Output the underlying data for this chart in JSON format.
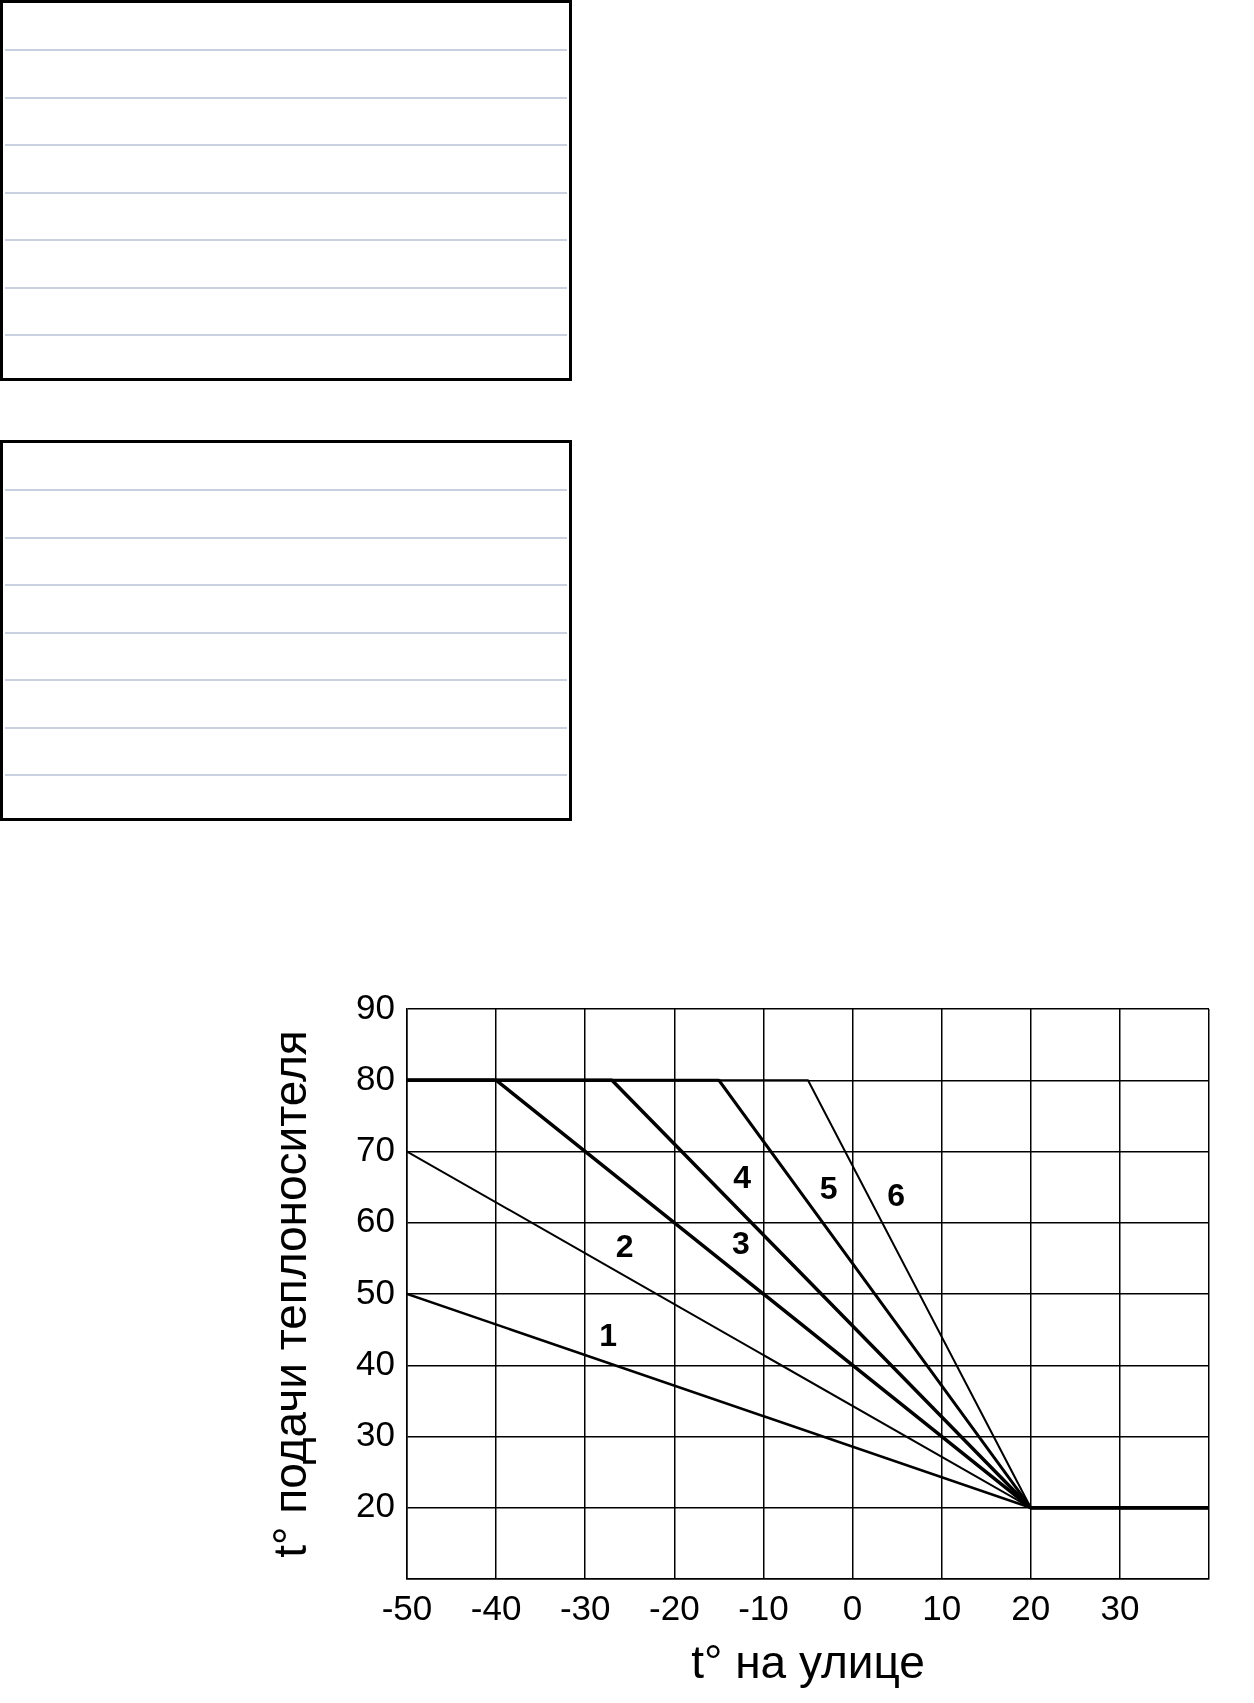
{
  "chart_data": {
    "type": "line",
    "xlabel": "t° на улице",
    "ylabel": "t° подачи теплоносителя",
    "xlim": [
      -50,
      40
    ],
    "xticks": [
      -50,
      -40,
      -30,
      -20,
      -10,
      0,
      10,
      20,
      30,
      {
        "value": 40,
        "label": null
      }
    ],
    "ylim": [
      10,
      90
    ],
    "yticks": [
      {
        "value": 10,
        "label": null
      },
      20,
      30,
      40,
      50,
      60,
      70,
      80,
      90
    ],
    "grid": true,
    "legend": false,
    "marker": "none",
    "line_style": "solid",
    "series": [
      {
        "name": "1",
        "color": "#000000",
        "x": [
          -50,
          20,
          40
        ],
        "values": [
          50,
          20,
          20
        ]
      },
      {
        "name": "2",
        "color": "#000000",
        "x": [
          -50,
          20,
          40
        ],
        "values": [
          70,
          20,
          20
        ]
      },
      {
        "name": "3",
        "color": "#000000",
        "x": [
          -50,
          -40,
          20,
          40
        ],
        "values": [
          80,
          80,
          20,
          20
        ]
      },
      {
        "name": "4",
        "color": "#000000",
        "x": [
          -50,
          -27,
          20,
          40
        ],
        "values": [
          80,
          80,
          20,
          20
        ]
      },
      {
        "name": "5",
        "color": "#000000",
        "x": [
          -50,
          -15,
          20,
          40
        ],
        "values": [
          80,
          80,
          20,
          20
        ]
      },
      {
        "name": "6",
        "color": "#000000",
        "x": [
          -50,
          -5,
          20,
          40
        ],
        "values": [
          80,
          80,
          20,
          20
        ]
      }
    ]
  }
}
